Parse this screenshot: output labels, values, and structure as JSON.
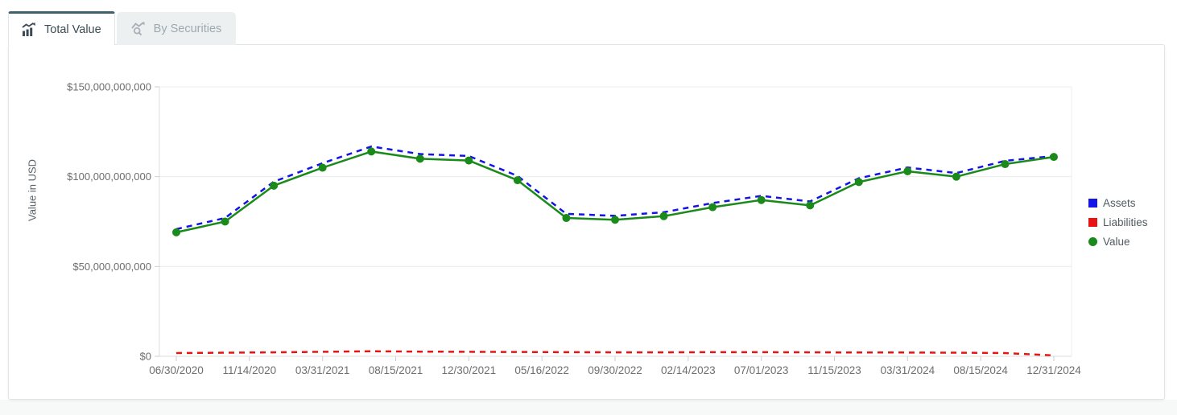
{
  "tabs": [
    {
      "label": "Total Value",
      "icon": "bar-chart-icon",
      "active": true
    },
    {
      "label": "By Securities",
      "icon": "chart-search-icon",
      "active": false
    }
  ],
  "colors": {
    "active_tab_accent": "#3f616d",
    "assets": "#1414e6",
    "liabilities": "#e81313",
    "value": "#1a8a1a"
  },
  "chart_data": {
    "type": "line",
    "title": "",
    "xlabel": "",
    "ylabel": "Value in USD",
    "unit": "USD billions",
    "ylim": [
      0,
      150
    ],
    "grid": "horizontal-only",
    "legend_position": "right",
    "y_tick_values": [
      0,
      50,
      100,
      150
    ],
    "y_tick_labels": [
      "$0",
      "$50,000,000,000",
      "$100,000,000,000",
      "$150,000,000,000"
    ],
    "x_tick_labels": [
      "06/30/2020",
      "11/14/2020",
      "03/31/2021",
      "08/15/2021",
      "12/30/2021",
      "05/16/2022",
      "09/30/2022",
      "02/14/2023",
      "07/01/2023",
      "11/15/2023",
      "03/31/2024",
      "08/15/2024",
      "12/31/2024"
    ],
    "x_tick_point_index": [
      0,
      1.5,
      3,
      4.5,
      6,
      7.5,
      9,
      10.5,
      12,
      13.5,
      15,
      16.5,
      18
    ],
    "x_dates": [
      "06/30/2020",
      "09/30/2020",
      "12/31/2020",
      "03/31/2021",
      "06/30/2021",
      "09/30/2021",
      "12/31/2021",
      "03/31/2022",
      "06/30/2022",
      "09/30/2022",
      "12/31/2022",
      "03/31/2023",
      "06/30/2023",
      "09/30/2023",
      "12/31/2023",
      "03/31/2024",
      "06/30/2024",
      "09/30/2024",
      "12/31/2024"
    ],
    "series": [
      {
        "name": "Assets",
        "color": "#1414e6",
        "style": "dashed",
        "marker": "square",
        "values": [
          70.8,
          77,
          97.2,
          107.5,
          116.8,
          112.6,
          111.5,
          100.4,
          79.3,
          78.2,
          80.2,
          85.3,
          89.3,
          86.2,
          99.1,
          105.1,
          102,
          108.8,
          111.5
        ]
      },
      {
        "name": "Liabilities",
        "color": "#e81313",
        "style": "dashed",
        "marker": "square",
        "values": [
          1.8,
          2,
          2.2,
          2.5,
          2.8,
          2.6,
          2.5,
          2.4,
          2.3,
          2.2,
          2.2,
          2.3,
          2.3,
          2.2,
          2.1,
          2.1,
          2,
          1.8,
          0.5
        ]
      },
      {
        "name": "Value",
        "color": "#1a8a1a",
        "style": "solid-dots",
        "marker": "circle",
        "values": [
          69,
          75,
          95,
          105,
          114,
          110,
          109,
          98,
          77,
          76,
          78,
          83,
          87,
          84,
          97,
          103,
          100,
          107,
          111
        ]
      }
    ]
  }
}
